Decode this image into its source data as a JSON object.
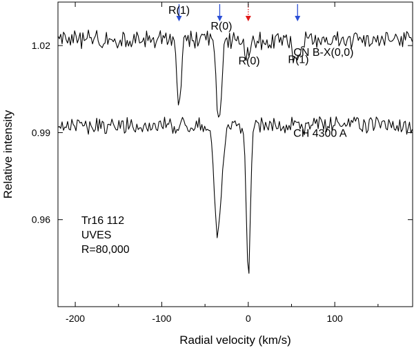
{
  "chart_data": {
    "type": "line",
    "title": "",
    "xlabel": "Radial velocity (km/s)",
    "ylabel": "Relative intensity",
    "xlim": [
      -220,
      190
    ],
    "ylim": [
      0.93,
      1.035
    ],
    "x_ticks": [
      -200,
      -100,
      0,
      100
    ],
    "y_ticks": [
      0.96,
      0.99,
      1.02
    ],
    "x_tick_labels": [
      "-200",
      "-100",
      "0",
      "100"
    ],
    "y_tick_labels": [
      "0.96",
      "0.99",
      "1.02"
    ],
    "series": [
      {
        "name": "CN B-X(0,0)",
        "baseline": 1.022,
        "noise": 0.0028,
        "absorptions": [
          {
            "label": "R(1)",
            "center": -80,
            "depth": 0.0215,
            "width": 2.5
          },
          {
            "label": "R(0)",
            "center": -34,
            "depth": 0.029,
            "width": 3.0
          },
          {
            "label": "",
            "center": 0,
            "depth": 0.006,
            "width": 3.0
          },
          {
            "label": "P(1)",
            "center": 55,
            "depth": 0.009,
            "width": 3.0
          }
        ]
      },
      {
        "name": "CH 4300 A",
        "baseline": 0.9925,
        "noise": 0.0026,
        "absorptions": [
          {
            "label": "R(0)",
            "center": -35,
            "depth": 0.0385,
            "width": 4.0
          },
          {
            "label": "R(0)",
            "center": 0,
            "depth": 0.0505,
            "width": 2.4
          }
        ]
      }
    ],
    "arrows": [
      {
        "x": -80,
        "color": "#2b4fd6",
        "style": "solid"
      },
      {
        "x": -33,
        "color": "#2b4fd6",
        "style": "solid"
      },
      {
        "x": 0,
        "color": "#e01919",
        "style": "dotted"
      },
      {
        "x": 57,
        "color": "#2b4fd6",
        "style": "solid"
      }
    ],
    "line_labels": [
      {
        "text": "R(1)",
        "x": -80,
        "y": 1.031
      },
      {
        "text": "R(0)",
        "x": -31,
        "y": 1.0255
      },
      {
        "text": "R(0)",
        "x": 1,
        "y": 1.0135
      },
      {
        "text": "P(1)",
        "x": 58,
        "y": 1.014
      },
      {
        "text": "CN B-X(0,0)",
        "x": 87,
        "y": 1.0165
      },
      {
        "text": "CH 4300 A",
        "x": 83,
        "y": 0.9885
      }
    ],
    "info_text": [
      "Tr16 112",
      "UVES",
      "R=80,000"
    ],
    "info_anchor": {
      "x": -193,
      "y": 0.9585
    },
    "axis_color": "#000000",
    "line_color": "#000000"
  }
}
